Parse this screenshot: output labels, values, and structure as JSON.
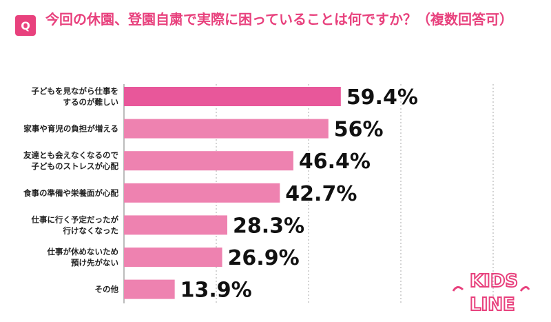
{
  "badge": {
    "label": "Q"
  },
  "question": "今回の休園、登園自粛で実際に困っていることは何ですか？（複数回答可）",
  "colors": {
    "accent": "#e8417d",
    "bar_top": "#e8579a",
    "bar": "#ee82b0",
    "grid": "#aaaaaa"
  },
  "logo": {
    "text_top": "KIDS",
    "text_bottom": "LINE",
    "color": "#e8417d"
  },
  "chart_data": {
    "type": "bar",
    "orientation": "horizontal",
    "unit": "%",
    "xlim": [
      0,
      100
    ],
    "grid": true,
    "categories": [
      [
        "子どもを見ながら仕事を",
        "するのが難しい"
      ],
      [
        "家事や育児の負担が増える"
      ],
      [
        "友達とも会えなくなるので",
        "子どものストレスが心配"
      ],
      [
        "食事の準備や栄養面が心配"
      ],
      [
        "仕事に行く予定だったが",
        "行けなくなった"
      ],
      [
        "仕事が休めないため",
        "預け先がない"
      ],
      [
        "その他"
      ]
    ],
    "values": [
      59.4,
      56,
      46.4,
      42.7,
      28.3,
      26.9,
      13.9
    ],
    "value_labels": [
      "59.4%",
      "56%",
      "46.4%",
      "42.7%",
      "28.3%",
      "26.9%",
      "13.9%"
    ]
  }
}
